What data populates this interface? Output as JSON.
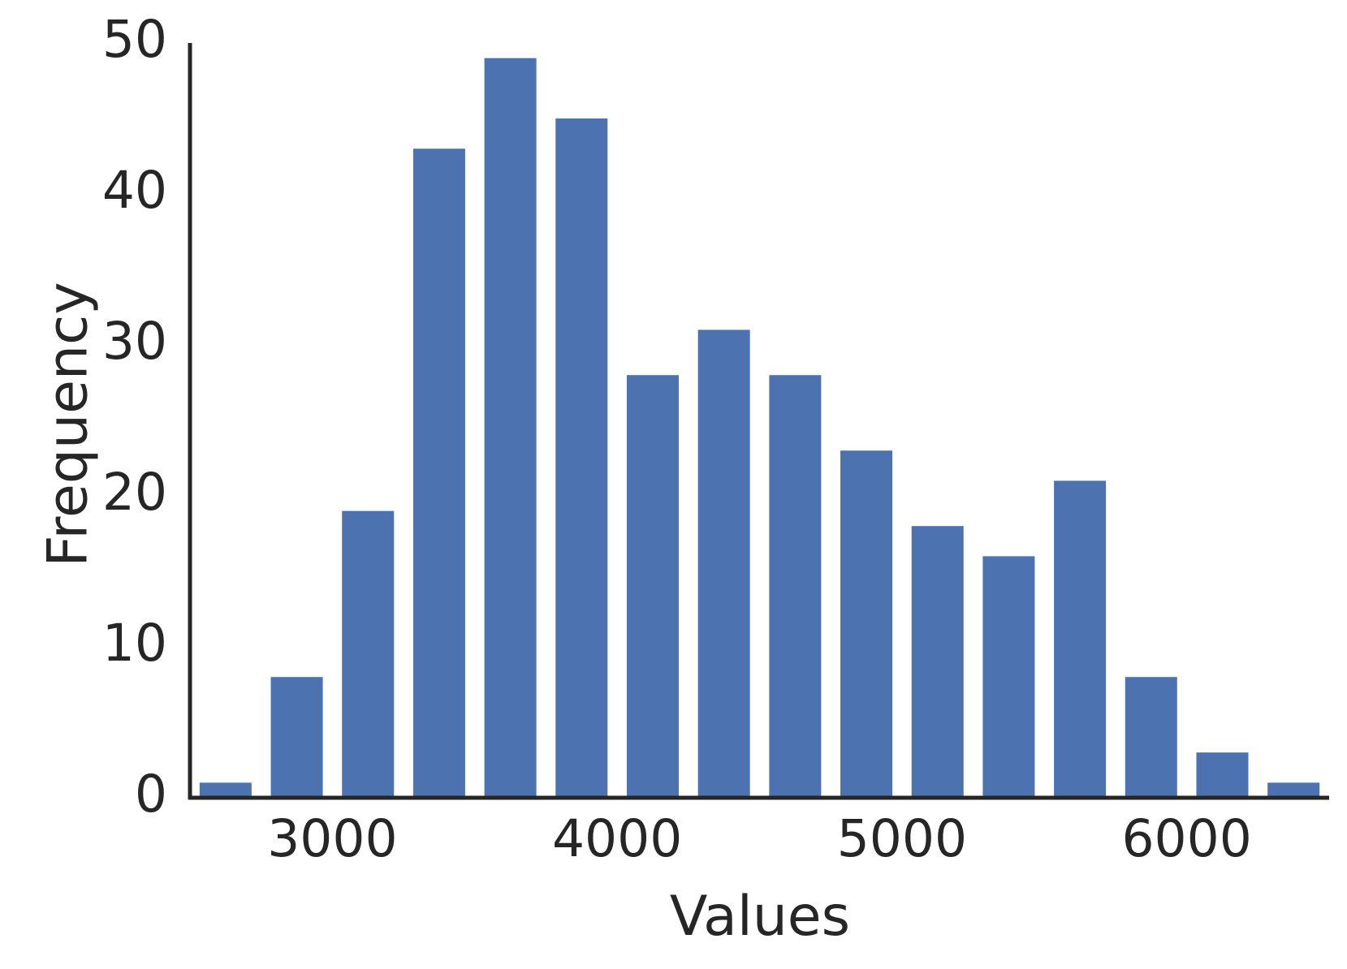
{
  "chart_data": {
    "type": "histogram",
    "x_label": "Values",
    "y_label": "Frequency",
    "bins": [
      2500,
      2750,
      3000,
      3250,
      3500,
      3750,
      4000,
      4250,
      4500,
      4750,
      5000,
      5250,
      5500,
      5750,
      6000,
      6250,
      6500
    ],
    "values": [
      1,
      8,
      19,
      43,
      49,
      45,
      28,
      31,
      28,
      23,
      18,
      16,
      21,
      8,
      3,
      1
    ],
    "color": "#4c72b0",
    "xlim": [
      2500,
      6500
    ],
    "xticks": [
      3000,
      4000,
      5000,
      6000
    ],
    "ylim": [
      0,
      50
    ],
    "yticks": [
      0,
      10,
      20,
      30,
      40,
      50
    ],
    "grid": false
  }
}
